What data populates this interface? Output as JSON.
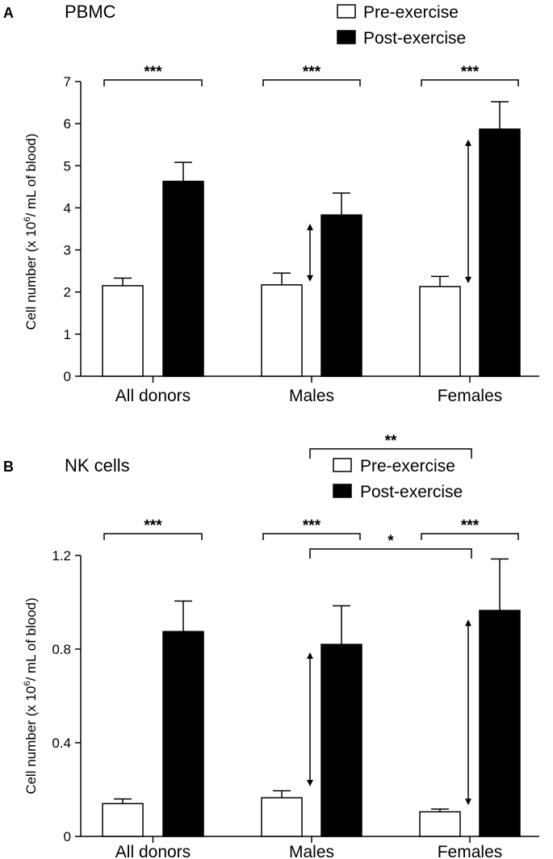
{
  "figure": {
    "legend": {
      "pre_label": "Pre-exercise",
      "post_label": "Post-exercise"
    }
  },
  "chart_data": [
    {
      "type": "bar",
      "panel_letter": "A",
      "title": "PBMC",
      "ylabel": "Cell number (x 10⁶/ mL of blood)",
      "ylabel_parts": {
        "pre": "Cell number (x 10",
        "sup": "6",
        "post": "/ mL of blood)"
      },
      "xlabel": "",
      "ylim": [
        0,
        7
      ],
      "yticks": [
        "0",
        "1",
        "2",
        "3",
        "4",
        "5",
        "6",
        "7"
      ],
      "ytick_values": [
        0,
        1,
        2,
        3,
        4,
        5,
        6,
        7
      ],
      "categories": [
        "All donors",
        "Males",
        "Females"
      ],
      "series": [
        {
          "name": "Pre-exercise",
          "color": "#ffffff",
          "values": [
            2.15,
            2.17,
            2.13
          ],
          "errors": [
            0.18,
            0.28,
            0.24
          ]
        },
        {
          "name": "Post-exercise",
          "color": "#000000",
          "values": [
            4.63,
            3.83,
            5.87
          ],
          "errors": [
            0.45,
            0.52,
            0.65
          ]
        }
      ],
      "within_significance": [
        "***",
        "***",
        "***"
      ],
      "between_significance": {
        "from": "Males",
        "to": "Females",
        "label": "**"
      },
      "arrows": [
        {
          "category": "Males",
          "from": 2.17,
          "to": 3.7
        },
        {
          "category": "Females",
          "from": 2.13,
          "to": 5.7
        }
      ],
      "legend_position": "top-right"
    },
    {
      "type": "bar",
      "panel_letter": "B",
      "title": "NK cells",
      "ylabel": "Cell number (x 10⁶/ mL of blood)",
      "ylabel_parts": {
        "pre": "Cell number (x 10",
        "sup": "6",
        "post": "/ mL of blood)"
      },
      "xlabel": "",
      "ylim": [
        0,
        1.2
      ],
      "yticks": [
        "0",
        "0.4",
        "0.8",
        "1.2"
      ],
      "ytick_values": [
        0,
        0.4,
        0.8,
        1.2
      ],
      "categories": [
        "All donors",
        "Males",
        "Females"
      ],
      "series": [
        {
          "name": "Pre-exercise",
          "color": "#ffffff",
          "values": [
            0.14,
            0.165,
            0.105
          ],
          "errors": [
            0.02,
            0.03,
            0.012
          ]
        },
        {
          "name": "Post-exercise",
          "color": "#000000",
          "values": [
            0.875,
            0.82,
            0.965
          ],
          "errors": [
            0.13,
            0.165,
            0.22
          ]
        }
      ],
      "within_significance": [
        "***",
        "***",
        "***"
      ],
      "between_significance": {
        "from": "Males",
        "to": "Females",
        "label": "*"
      },
      "arrows": [
        {
          "category": "Males",
          "from": 0.2,
          "to": 0.8
        },
        {
          "category": "Females",
          "from": 0.12,
          "to": 0.94
        }
      ],
      "legend_position": "top-right"
    }
  ]
}
